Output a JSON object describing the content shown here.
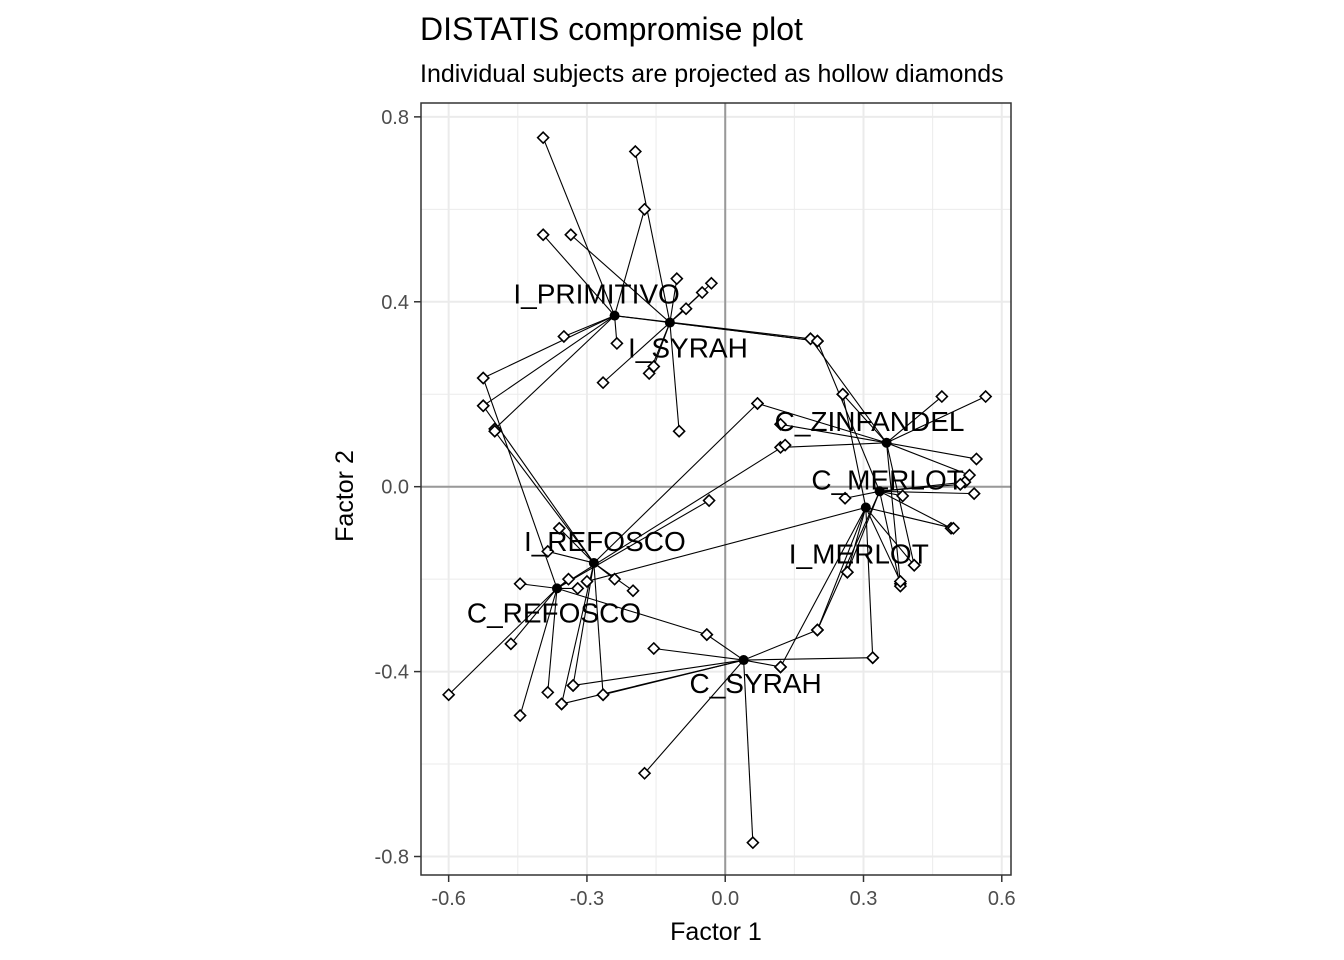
{
  "chart_data": {
    "type": "scatter",
    "title": "DISTATIS compromise plot",
    "subtitle": "Individual subjects are projected as hollow diamonds",
    "xlabel": "Factor 1",
    "ylabel": "Factor 2",
    "xlim": [
      -0.66,
      0.62
    ],
    "ylim": [
      -0.84,
      0.83
    ],
    "xticks": [
      -0.6,
      -0.3,
      0.0,
      0.3,
      0.6
    ],
    "xtick_labels": [
      "-0.6",
      "-0.3",
      "0.0",
      "0.3",
      "0.6"
    ],
    "yticks": [
      -0.8,
      -0.4,
      0.0,
      0.4,
      0.8
    ],
    "ytick_labels": [
      "-0.8",
      "-0.4",
      "0.0",
      "0.4",
      "0.8"
    ],
    "grid": true,
    "legend": "none",
    "colors": {
      "points": "#000000",
      "grid": "#ebebeb",
      "zero_lines": "#999999",
      "panel_border": "#333333"
    },
    "compromise": [
      {
        "label": "I_PRIMITIVO",
        "x": -0.24,
        "y": 0.37
      },
      {
        "label": "I_SYRAH",
        "x": -0.12,
        "y": 0.355
      },
      {
        "label": "C_ZINFANDEL",
        "x": 0.35,
        "y": 0.095
      },
      {
        "label": "C_MERLOT",
        "x": 0.335,
        "y": -0.01
      },
      {
        "label": "I_MERLOT",
        "x": 0.305,
        "y": -0.045
      },
      {
        "label": "I_REFOSCO",
        "x": -0.285,
        "y": -0.165
      },
      {
        "label": "C_REFOSCO",
        "x": -0.365,
        "y": -0.22
      },
      {
        "label": "C_SYRAH",
        "x": 0.04,
        "y": -0.375
      }
    ],
    "subjects": [
      {
        "product": "I_PRIMITIVO",
        "points": [
          [
            -0.395,
            0.755
          ],
          [
            -0.395,
            0.545
          ],
          [
            -0.525,
            0.235
          ],
          [
            -0.5,
            0.125
          ],
          [
            -0.525,
            0.175
          ],
          [
            -0.175,
            0.6
          ],
          [
            -0.35,
            0.325
          ],
          [
            -0.235,
            0.31
          ],
          [
            0.185,
            0.32
          ],
          [
            0.2,
            0.315
          ]
        ]
      },
      {
        "product": "I_SYRAH",
        "points": [
          [
            -0.195,
            0.725
          ],
          [
            -0.335,
            0.545
          ],
          [
            -0.105,
            0.45
          ],
          [
            -0.05,
            0.42
          ],
          [
            -0.03,
            0.44
          ],
          [
            -0.085,
            0.385
          ],
          [
            -0.165,
            0.245
          ],
          [
            -0.155,
            0.26
          ],
          [
            -0.265,
            0.225
          ],
          [
            -0.1,
            0.12
          ],
          [
            0.2,
            0.315
          ]
        ]
      },
      {
        "product": "C_ZINFANDEL",
        "points": [
          [
            0.47,
            0.195
          ],
          [
            0.565,
            0.195
          ],
          [
            0.545,
            0.06
          ],
          [
            0.255,
            0.2
          ],
          [
            0.185,
            0.32
          ],
          [
            0.12,
            0.135
          ],
          [
            0.07,
            0.18
          ],
          [
            0.12,
            0.085
          ],
          [
            0.41,
            -0.17
          ],
          [
            0.53,
            0.025
          ],
          [
            0.38,
            -0.21
          ]
        ]
      },
      {
        "product": "C_MERLOT",
        "points": [
          [
            0.54,
            -0.015
          ],
          [
            0.52,
            0.01
          ],
          [
            0.51,
            0.005
          ],
          [
            0.385,
            -0.02
          ],
          [
            0.26,
            -0.025
          ],
          [
            0.265,
            -0.185
          ],
          [
            0.2,
            -0.31
          ],
          [
            0.49,
            -0.09
          ],
          [
            0.2,
            0.315
          ],
          [
            0.38,
            -0.215
          ]
        ]
      },
      {
        "product": "I_MERLOT",
        "points": [
          [
            0.41,
            -0.17
          ],
          [
            0.38,
            -0.205
          ],
          [
            0.32,
            -0.37
          ],
          [
            0.12,
            -0.39
          ],
          [
            0.2,
            -0.31
          ],
          [
            0.265,
            -0.185
          ],
          [
            0.495,
            -0.09
          ],
          [
            0.255,
            0.2
          ],
          [
            -0.3,
            -0.205
          ]
        ]
      },
      {
        "product": "I_REFOSCO",
        "points": [
          [
            -0.36,
            -0.09
          ],
          [
            -0.385,
            -0.14
          ],
          [
            -0.355,
            -0.47
          ],
          [
            -0.33,
            -0.43
          ],
          [
            -0.265,
            -0.45
          ],
          [
            -0.2,
            -0.225
          ],
          [
            -0.24,
            -0.2
          ],
          [
            -0.525,
            0.175
          ],
          [
            0.07,
            0.18
          ],
          [
            -0.5,
            0.12
          ]
        ]
      },
      {
        "product": "C_REFOSCO",
        "points": [
          [
            -0.6,
            -0.45
          ],
          [
            -0.445,
            -0.495
          ],
          [
            -0.465,
            -0.34
          ],
          [
            -0.445,
            -0.21
          ],
          [
            -0.385,
            -0.445
          ],
          [
            -0.32,
            -0.22
          ],
          [
            -0.34,
            -0.2
          ],
          [
            -0.525,
            0.235
          ],
          [
            -0.04,
            -0.32
          ],
          [
            0.13,
            0.09
          ],
          [
            -0.035,
            -0.03
          ]
        ]
      },
      {
        "product": "C_SYRAH",
        "points": [
          [
            -0.155,
            -0.35
          ],
          [
            -0.04,
            -0.32
          ],
          [
            -0.175,
            -0.62
          ],
          [
            0.06,
            -0.77
          ],
          [
            0.12,
            -0.39
          ],
          [
            0.2,
            -0.31
          ],
          [
            0.32,
            -0.37
          ],
          [
            -0.265,
            -0.45
          ],
          [
            -0.33,
            -0.43
          ],
          [
            -0.355,
            -0.47
          ]
        ]
      }
    ]
  }
}
